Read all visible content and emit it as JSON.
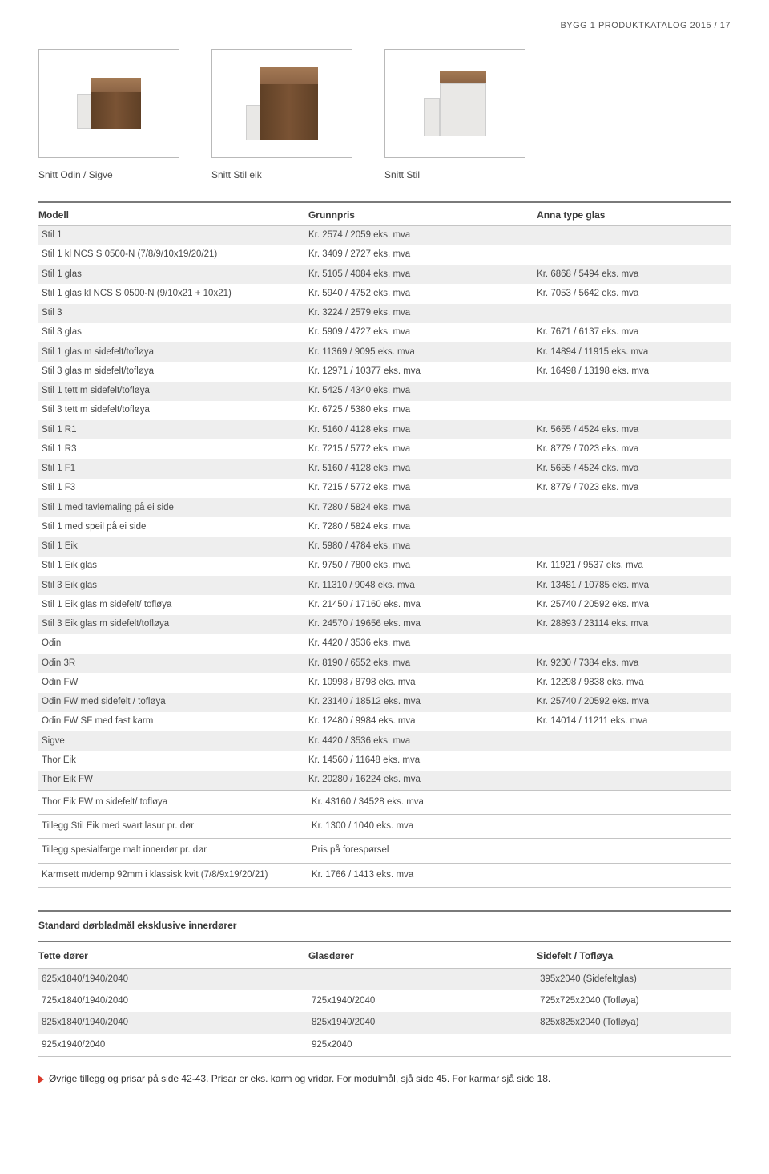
{
  "header": "BYGG 1 PRODUKTKATALOG 2015 / 17",
  "profiles": {
    "caption1": "Snitt Odin / Sigve",
    "caption2": "Snitt Stil eik",
    "caption3": "Snitt Stil"
  },
  "mainTable": {
    "headers": {
      "model": "Modell",
      "price": "Grunnpris",
      "glas": "Anna type glas"
    },
    "rows": [
      {
        "m": "Stil 1",
        "p": "Kr. 2574 / 2059 eks. mva",
        "g": ""
      },
      {
        "m": "Stil 1 kl NCS S 0500-N (7/8/9/10x19/20/21)",
        "p": "Kr. 3409 / 2727 eks. mva",
        "g": ""
      },
      {
        "m": "Stil 1 glas",
        "p": "Kr. 5105 / 4084 eks. mva",
        "g": "Kr. 6868 / 5494 eks. mva"
      },
      {
        "m": "Stil 1 glas kl NCS S 0500-N (9/10x21 + 10x21)",
        "p": "Kr. 5940 / 4752 eks. mva",
        "g": "Kr. 7053 / 5642 eks. mva"
      },
      {
        "m": "Stil 3",
        "p": "Kr. 3224 / 2579 eks. mva",
        "g": ""
      },
      {
        "m": "Stil 3 glas",
        "p": "Kr. 5909 / 4727 eks. mva",
        "g": "Kr. 7671 / 6137 eks. mva"
      },
      {
        "m": "Stil 1 glas m sidefelt/tofløya",
        "p": "Kr. 11369 / 9095 eks. mva",
        "g": "Kr. 14894 / 11915 eks. mva"
      },
      {
        "m": "Stil 3 glas m sidefelt/tofløya",
        "p": "Kr. 12971 / 10377 eks. mva",
        "g": "Kr. 16498 / 13198 eks. mva"
      },
      {
        "m": "Stil 1 tett m sidefelt/tofløya",
        "p": "Kr. 5425 / 4340 eks. mva",
        "g": ""
      },
      {
        "m": "Stil 3 tett m sidefelt/tofløya",
        "p": "Kr. 6725 / 5380 eks. mva",
        "g": ""
      },
      {
        "m": "Stil 1 R1",
        "p": "Kr. 5160 / 4128 eks. mva",
        "g": "Kr. 5655 / 4524 eks. mva"
      },
      {
        "m": "Stil 1 R3",
        "p": "Kr. 7215 / 5772 eks. mva",
        "g": "Kr. 8779 / 7023 eks. mva"
      },
      {
        "m": "Stil 1 F1",
        "p": "Kr. 5160 / 4128 eks. mva",
        "g": "Kr. 5655 / 4524 eks. mva"
      },
      {
        "m": "Stil 1 F3",
        "p": "Kr. 7215 / 5772 eks. mva",
        "g": "Kr. 8779 / 7023 eks. mva"
      },
      {
        "m": "Stil 1 med tavlemaling på ei side",
        "p": "Kr. 7280 / 5824 eks. mva",
        "g": ""
      },
      {
        "m": "Stil 1 med speil på ei side",
        "p": "Kr. 7280 / 5824 eks. mva",
        "g": ""
      },
      {
        "m": "Stil 1 Eik",
        "p": "Kr. 5980 / 4784 eks. mva",
        "g": ""
      },
      {
        "m": "Stil 1 Eik glas",
        "p": "Kr. 9750 / 7800 eks. mva",
        "g": "Kr. 11921 / 9537 eks. mva"
      },
      {
        "m": "Stil 3 Eik glas",
        "p": "Kr. 11310 / 9048 eks. mva",
        "g": "Kr. 13481 / 10785 eks. mva"
      },
      {
        "m": "Stil 1 Eik glas m sidefelt/ tofløya",
        "p": "Kr. 21450 / 17160 eks. mva",
        "g": "Kr. 25740 / 20592 eks. mva"
      },
      {
        "m": "Stil 3 Eik glas m sidefelt/tofløya",
        "p": "Kr. 24570 / 19656 eks. mva",
        "g": "Kr. 28893 / 23114 eks. mva"
      },
      {
        "m": "Odin",
        "p": "Kr. 4420 / 3536 eks. mva",
        "g": ""
      },
      {
        "m": "Odin 3R",
        "p": "Kr. 8190 / 6552 eks. mva",
        "g": "Kr. 9230 / 7384 eks. mva"
      },
      {
        "m": "Odin FW",
        "p": "Kr. 10998 / 8798 eks. mva",
        "g": "Kr. 12298 / 9838 eks. mva"
      },
      {
        "m": "Odin FW med sidefelt / tofløya",
        "p": "Kr. 23140 / 18512 eks. mva",
        "g": "Kr. 25740 / 20592 eks. mva"
      },
      {
        "m": "Odin FW SF med fast karm",
        "p": "Kr. 12480 / 9984 eks. mva",
        "g": "Kr. 14014 / 11211 eks. mva"
      },
      {
        "m": "Sigve",
        "p": "Kr. 4420 / 3536 eks. mva",
        "g": ""
      },
      {
        "m": "Thor Eik",
        "p": "Kr. 14560 / 11648 eks. mva",
        "g": ""
      },
      {
        "m": "Thor Eik FW",
        "p": "Kr. 20280 / 16224 eks. mva",
        "g": ""
      }
    ],
    "extras": [
      {
        "m": "Thor Eik FW m sidefelt/ tofløya",
        "p": "Kr. 43160 / 34528 eks. mva",
        "g": ""
      },
      {
        "m": "Tillegg Stil Eik med svart lasur pr. dør",
        "p": "Kr. 1300 / 1040 eks. mva",
        "g": ""
      },
      {
        "m": "Tillegg spesialfarge malt innerdør pr. dør",
        "p": "Pris på forespørsel",
        "g": ""
      },
      {
        "m": "Karmsett m/demp 92mm i klassisk kvit (7/8/9x19/20/21)",
        "p": "Kr. 1766 / 1413 eks. mva",
        "g": ""
      }
    ]
  },
  "stdTable": {
    "title": "Standard dørbladmål eksklusive innerdører",
    "headers": {
      "a": "Tette dører",
      "b": "Glasdører",
      "c": "Sidefelt / Tofløya"
    },
    "rows": [
      {
        "a": "625x1840/1940/2040",
        "b": "",
        "c": "395x2040 (Sidefeltglas)"
      },
      {
        "a": "725x1840/1940/2040",
        "b": "725x1940/2040",
        "c": "725x725x2040 (Tofløya)"
      },
      {
        "a": "825x1840/1940/2040",
        "b": "825x1940/2040",
        "c": "825x825x2040 (Tofløya)"
      },
      {
        "a": "925x1940/2040",
        "b": "925x2040",
        "c": ""
      }
    ]
  },
  "footer": "Øvrige tillegg og prisar på side 42-43. Prisar er eks. karm og vridar. For modulmål, sjå side 45. For karmar sjå side 18."
}
